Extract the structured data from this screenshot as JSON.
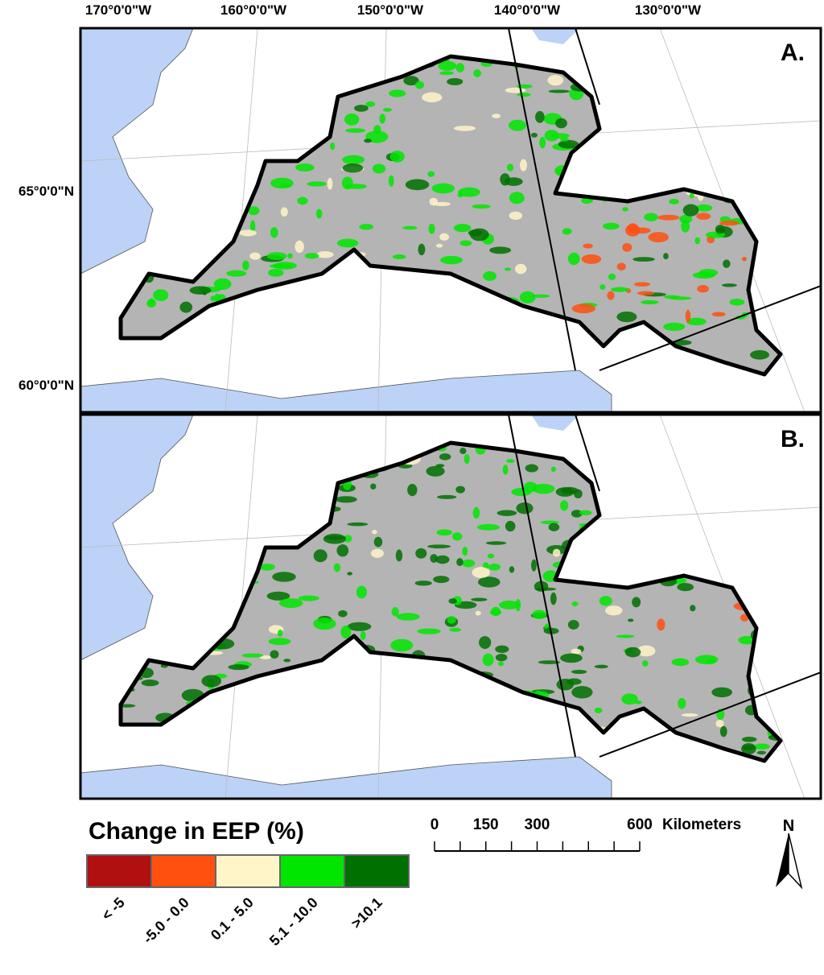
{
  "longitude_labels": [
    "170°0'0\"W",
    "160°0'0\"W",
    "150°0'0\"W",
    "140°0'0\"W",
    "130°0'0\"W"
  ],
  "latitude_labels": [
    "65°0'0\"N",
    "60°0'0\"N"
  ],
  "panels": [
    {
      "label": "A."
    },
    {
      "label": "B."
    }
  ],
  "legend": {
    "title": "Change in EEP (%)",
    "classes": [
      {
        "label": "< -5",
        "color": "#b01010"
      },
      {
        "label": "-5.0 - 0.0",
        "color": "#ff5010"
      },
      {
        "label": "0.1 - 5.0",
        "color": "#fff5c8"
      },
      {
        "label": "5.1 - 10.0",
        "color": "#00e600"
      },
      {
        "label": ">10.1",
        "color": "#007000"
      }
    ]
  },
  "scale_bar": {
    "labels": [
      "0",
      "150",
      "300",
      "600"
    ],
    "unit": "Kilometers"
  },
  "north_arrow": {
    "label": "N"
  }
}
